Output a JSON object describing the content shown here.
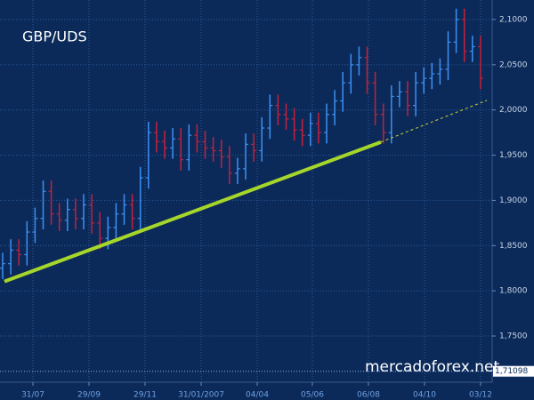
{
  "chart_data": {
    "type": "ohlc",
    "title": "GBP/UDS",
    "watermark": "mercadoforex.net",
    "open": [
      1.825,
      1.83,
      1.845,
      1.84,
      1.865,
      1.88,
      1.91,
      1.885,
      1.878,
      1.89,
      1.88,
      1.895,
      1.875,
      1.858,
      1.87,
      1.885,
      1.895,
      1.88,
      1.925,
      1.975,
      1.965,
      1.958,
      1.968,
      1.945,
      1.972,
      1.965,
      1.958,
      1.955,
      1.948,
      1.93,
      1.935,
      1.962,
      1.955,
      1.98,
      2.005,
      1.995,
      1.99,
      1.978,
      1.972,
      1.985,
      1.975,
      1.995,
      2.01,
      2.03,
      2.05,
      2.058,
      2.03,
      1.995,
      1.975,
      2.015,
      2.02,
      2.005,
      2.03,
      2.035,
      2.04,
      2.045,
      2.075,
      2.1,
      2.065,
      2.07
    ],
    "high": [
      1.842,
      1.857,
      1.857,
      1.877,
      1.892,
      1.922,
      1.922,
      1.897,
      1.902,
      1.902,
      1.907,
      1.907,
      1.887,
      1.882,
      1.897,
      1.907,
      1.907,
      1.937,
      1.987,
      1.987,
      1.977,
      1.98,
      1.98,
      1.984,
      1.984,
      1.977,
      1.97,
      1.967,
      1.96,
      1.947,
      1.974,
      1.974,
      1.992,
      2.017,
      2.017,
      2.007,
      2.002,
      1.99,
      1.997,
      1.997,
      2.007,
      2.022,
      2.042,
      2.062,
      2.07,
      2.07,
      2.042,
      2.007,
      2.027,
      2.032,
      2.032,
      2.042,
      2.047,
      2.052,
      2.057,
      2.087,
      2.112,
      2.112,
      2.082,
      2.082
    ],
    "low": [
      1.813,
      1.818,
      1.828,
      1.828,
      1.853,
      1.868,
      1.873,
      1.866,
      1.866,
      1.868,
      1.868,
      1.863,
      1.846,
      1.846,
      1.858,
      1.873,
      1.868,
      1.868,
      1.913,
      1.953,
      1.946,
      1.946,
      1.933,
      1.933,
      1.953,
      1.946,
      1.943,
      1.936,
      1.918,
      1.918,
      1.923,
      1.943,
      1.943,
      1.968,
      1.983,
      1.978,
      1.966,
      1.96,
      1.96,
      1.963,
      1.963,
      1.983,
      1.998,
      2.018,
      2.038,
      2.018,
      1.983,
      1.963,
      1.963,
      2.003,
      1.993,
      1.993,
      2.018,
      2.023,
      2.028,
      2.033,
      2.063,
      2.053,
      2.053,
      2.023
    ],
    "close": [
      1.83,
      1.845,
      1.84,
      1.865,
      1.88,
      1.91,
      1.885,
      1.878,
      1.89,
      1.88,
      1.895,
      1.875,
      1.858,
      1.87,
      1.885,
      1.895,
      1.88,
      1.925,
      1.975,
      1.965,
      1.958,
      1.968,
      1.945,
      1.972,
      1.965,
      1.958,
      1.955,
      1.948,
      1.93,
      1.935,
      1.962,
      1.955,
      1.98,
      2.005,
      1.995,
      1.99,
      1.978,
      1.972,
      1.985,
      1.975,
      1.995,
      2.01,
      2.03,
      2.05,
      2.058,
      2.03,
      1.995,
      1.975,
      2.015,
      2.02,
      2.005,
      2.03,
      2.035,
      2.04,
      2.045,
      2.075,
      2.1,
      2.065,
      2.07,
      2.035
    ],
    "up_color": "#3d8ff0",
    "down_color": "#c4203c",
    "xlim": [
      -0.33,
      60.44
    ],
    "ylim": [
      1.6989,
      2.1216
    ],
    "xticks": [
      {
        "value": 3.74,
        "label": "31/07"
      },
      {
        "value": 10.66,
        "label": "29/09"
      },
      {
        "value": 17.58,
        "label": "29/11"
      },
      {
        "value": 24.51,
        "label": "31/01/2007"
      },
      {
        "value": 31.43,
        "label": "04/04"
      },
      {
        "value": 38.24,
        "label": "05/06"
      },
      {
        "value": 45.16,
        "label": "06/08"
      },
      {
        "value": 52.09,
        "label": "04/10"
      },
      {
        "value": 59.01,
        "label": "03/12"
      }
    ],
    "yticks": [
      {
        "value": 1.75,
        "label": "1,7500"
      },
      {
        "value": 1.8,
        "label": "1,8000"
      },
      {
        "value": 1.85,
        "label": "1,8500"
      },
      {
        "value": 1.9,
        "label": "1,9000"
      },
      {
        "value": 1.95,
        "label": "1,9500"
      },
      {
        "value": 2.0,
        "label": "2,0000"
      },
      {
        "value": 2.05,
        "label": "2,0500"
      },
      {
        "value": 2.1,
        "label": "2,1000"
      }
    ],
    "grid": true,
    "last_price": {
      "value": 1.71098,
      "label": "1,71098"
    },
    "trendline": {
      "x": [
        0.22,
        46.7
      ],
      "y": [
        1.8103,
        1.9645
      ],
      "color": "#a6d62a"
    },
    "projection": {
      "x": [
        46.7,
        59.78
      ],
      "y": [
        1.9645,
        2.0106
      ],
      "color": "#c8d830"
    }
  }
}
